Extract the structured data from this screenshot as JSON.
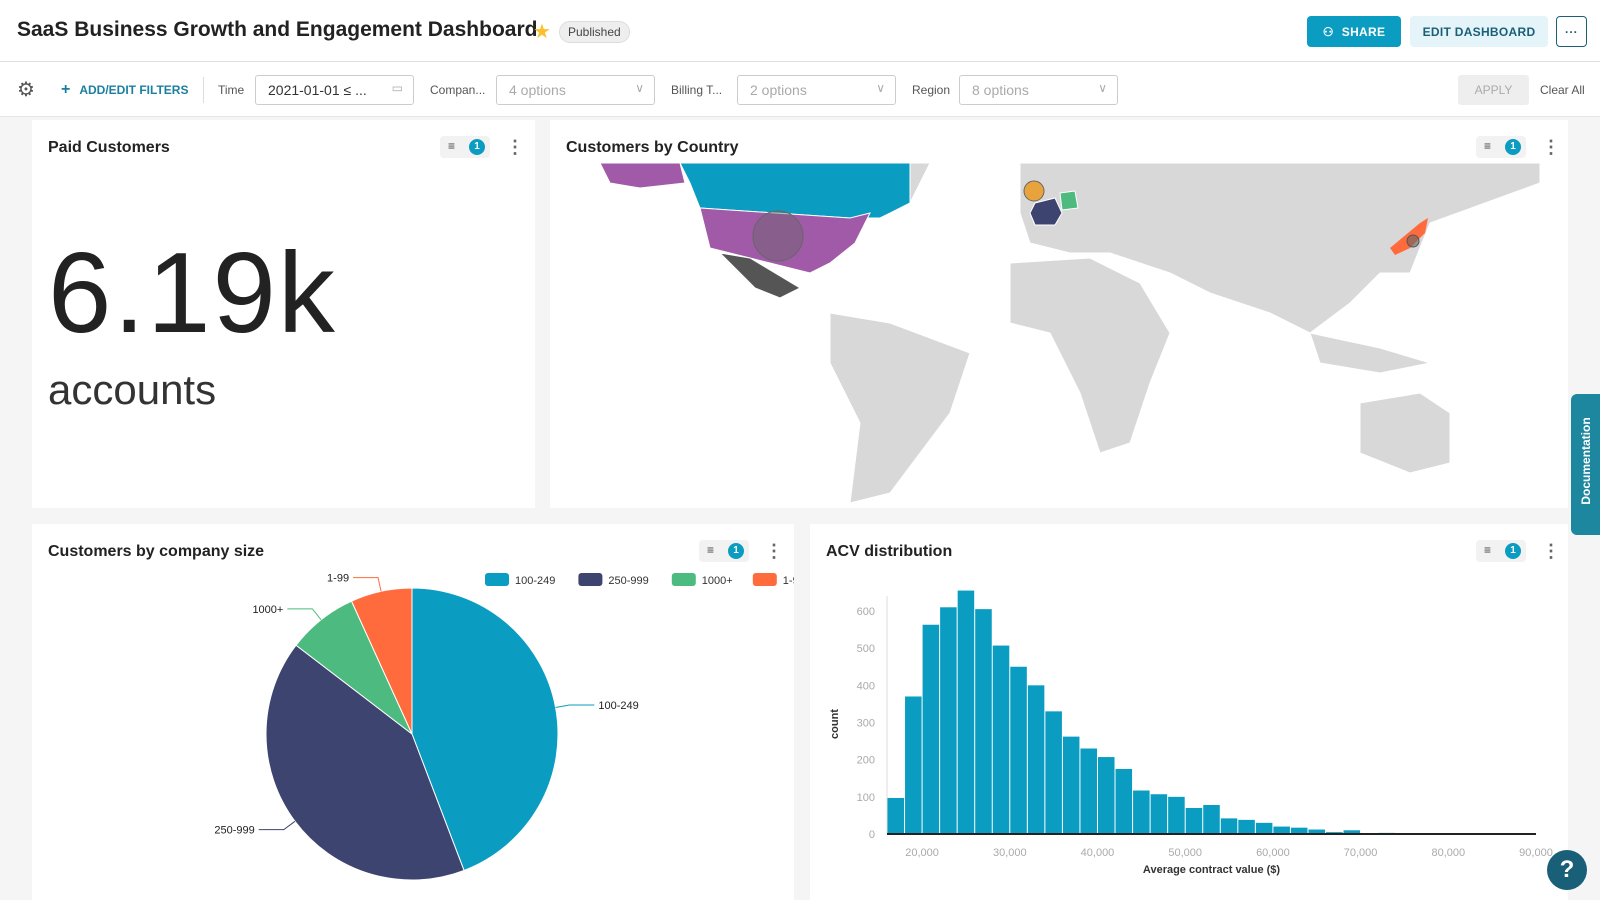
{
  "header": {
    "title": "SaaS Business Growth and Engagement Dashboard",
    "status": "Published",
    "share_label": "SHARE",
    "edit_label": "EDIT DASHBOARD",
    "more_label": "···"
  },
  "filters": {
    "add_label": "ADD/EDIT FILTERS",
    "items": [
      {
        "label": "Time",
        "value": "2021-01-01 ≤ ..."
      },
      {
        "label": "Compan...",
        "value": "4 options"
      },
      {
        "label": "Billing T...",
        "value": "2 options"
      },
      {
        "label": "Region",
        "value": "8 options"
      }
    ],
    "apply_label": "APPLY",
    "clear_label": "Clear All"
  },
  "cards": {
    "paid": {
      "title": "Paid Customers",
      "value": "6.19k",
      "unit": "accounts",
      "filter_count": "1"
    },
    "country": {
      "title": "Customers by Country",
      "filter_count": "1",
      "highlighted": [
        {
          "country": "United States",
          "color": "#a05aa8"
        },
        {
          "country": "Canada",
          "color": "#0b9cc1"
        },
        {
          "country": "Mexico",
          "color": "#555555"
        },
        {
          "country": "France",
          "color": "#3d4470"
        },
        {
          "country": "Germany",
          "color": "#4dbb7f"
        },
        {
          "country": "United Kingdom",
          "color": "#e8a33d"
        },
        {
          "country": "Japan",
          "color": "#ff6b3d"
        }
      ]
    },
    "size": {
      "title": "Customers by company size",
      "filter_count": "1"
    },
    "acv": {
      "title": "ACV distribution",
      "filter_count": "1"
    }
  },
  "chart_data": [
    {
      "type": "pie",
      "categories": [
        "100-249",
        "250-999",
        "1000+",
        "1-99"
      ],
      "values": [
        44.2,
        41.2,
        7.8,
        6.8
      ],
      "colors": [
        "#0b9cc1",
        "#3d4470",
        "#4dbb7f",
        "#ff6b3d"
      ],
      "legend": "top-right"
    },
    {
      "type": "bar",
      "title": "",
      "xlabel": "Average contract value ($)",
      "ylabel": "count",
      "bin_width": 2000,
      "x": [
        16000,
        18000,
        20000,
        22000,
        24000,
        26000,
        28000,
        30000,
        32000,
        34000,
        36000,
        38000,
        40000,
        42000,
        44000,
        46000,
        48000,
        50000,
        52000,
        54000,
        56000,
        58000,
        60000,
        62000,
        64000,
        66000,
        68000,
        70000,
        72000
      ],
      "values": [
        97,
        370,
        563,
        610,
        655,
        605,
        507,
        450,
        400,
        330,
        262,
        230,
        207,
        175,
        117,
        107,
        100,
        70,
        78,
        42,
        38,
        30,
        20,
        17,
        12,
        5,
        10,
        0,
        3
      ],
      "xlim": [
        16000,
        90000
      ],
      "ylim": [
        0,
        655
      ],
      "xticks": [
        "20,000",
        "30,000",
        "40,000",
        "50,000",
        "60,000",
        "70,000",
        "80,000",
        "90,000"
      ],
      "yticks": [
        "0",
        "100",
        "200",
        "300",
        "400",
        "500",
        "600"
      ],
      "color": "#0b9cc1"
    }
  ],
  "help_label": "?",
  "doc_label": "Documentation"
}
